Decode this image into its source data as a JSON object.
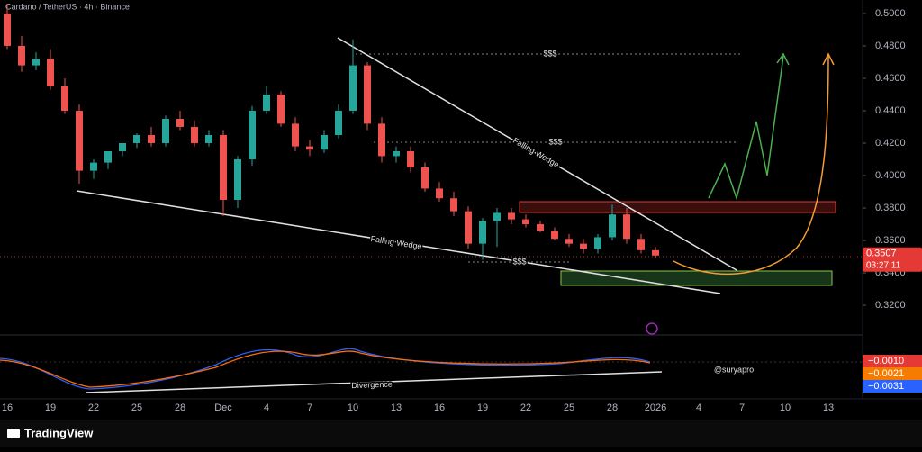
{
  "chart_data": {
    "type": "candlestick",
    "title": "Cardano / TetherUS · 4h · Binance",
    "open": [
      0.5,
      0.48,
      0.468,
      0.472,
      0.455,
      0.44,
      0.403,
      0.408,
      0.415,
      0.42,
      0.425,
      0.42,
      0.435,
      0.43,
      0.42,
      0.425,
      0.385,
      0.41,
      0.44,
      0.45,
      0.432,
      0.418,
      0.416,
      0.425,
      0.44,
      0.468,
      0.432,
      0.412,
      0.415,
      0.405,
      0.392,
      0.386,
      0.378,
      0.358,
      0.372,
      0.377,
      0.373,
      0.37,
      0.366,
      0.361,
      0.358,
      0.355,
      0.362,
      0.376,
      0.361,
      0.354
    ],
    "high": [
      0.506,
      0.486,
      0.476,
      0.478,
      0.46,
      0.444,
      0.41,
      0.414,
      0.42,
      0.426,
      0.43,
      0.437,
      0.44,
      0.434,
      0.428,
      0.428,
      0.412,
      0.443,
      0.455,
      0.452,
      0.436,
      0.422,
      0.428,
      0.444,
      0.484,
      0.47,
      0.436,
      0.418,
      0.418,
      0.408,
      0.396,
      0.39,
      0.381,
      0.374,
      0.38,
      0.38,
      0.376,
      0.372,
      0.368,
      0.364,
      0.361,
      0.364,
      0.382,
      0.38,
      0.364,
      0.356
    ],
    "low": [
      0.478,
      0.464,
      0.465,
      0.453,
      0.438,
      0.395,
      0.398,
      0.404,
      0.412,
      0.417,
      0.418,
      0.418,
      0.428,
      0.418,
      0.418,
      0.375,
      0.38,
      0.406,
      0.438,
      0.43,
      0.415,
      0.412,
      0.414,
      0.423,
      0.438,
      0.428,
      0.408,
      0.408,
      0.402,
      0.39,
      0.384,
      0.375,
      0.355,
      0.348,
      0.356,
      0.37,
      0.368,
      0.365,
      0.36,
      0.356,
      0.352,
      0.352,
      0.36,
      0.358,
      0.352,
      0.349
    ],
    "close": [
      0.48,
      0.468,
      0.472,
      0.455,
      0.44,
      0.403,
      0.408,
      0.415,
      0.42,
      0.425,
      0.42,
      0.435,
      0.43,
      0.42,
      0.425,
      0.385,
      0.41,
      0.44,
      0.45,
      0.432,
      0.418,
      0.416,
      0.425,
      0.44,
      0.468,
      0.432,
      0.412,
      0.415,
      0.405,
      0.392,
      0.386,
      0.378,
      0.358,
      0.372,
      0.377,
      0.373,
      0.37,
      0.366,
      0.361,
      0.358,
      0.355,
      0.362,
      0.376,
      0.361,
      0.354,
      0.3507
    ],
    "up_color": "#26a69a",
    "down_color": "#ef5350",
    "x_labels": [
      "16",
      "19",
      "22",
      "25",
      "28",
      "Dec",
      "4",
      "7",
      "10",
      "13",
      "16",
      "19",
      "22",
      "25",
      "28",
      "2026",
      "4",
      "7",
      "10",
      "13"
    ],
    "ylim": [
      0.3056,
      0.5083
    ],
    "yticks": [
      {
        "value": 0.5,
        "label": "0.5000"
      },
      {
        "value": 0.48,
        "label": "0.4800"
      },
      {
        "value": 0.46,
        "label": "0.4600"
      },
      {
        "value": 0.44,
        "label": "0.4400"
      },
      {
        "value": 0.42,
        "label": "0.4200"
      },
      {
        "value": 0.4,
        "label": "0.4000"
      },
      {
        "value": 0.38,
        "label": "0.3800"
      },
      {
        "value": 0.36,
        "label": "0.3600"
      },
      {
        "value": 0.34,
        "label": "0.3400"
      },
      {
        "value": 0.32,
        "label": "0.3200"
      }
    ],
    "last_label": "0.3507",
    "countdown": "03:27:11",
    "annotations": [
      "Falling Wedge",
      "Falling Wedge",
      "$$$",
      "$$$",
      "$$$",
      "Divergence",
      "@suryapro"
    ],
    "indicator_labels": [
      "−0.0010",
      "−0.0021",
      "−0.0031"
    ]
  },
  "footer": {
    "brand": "TradingView"
  }
}
